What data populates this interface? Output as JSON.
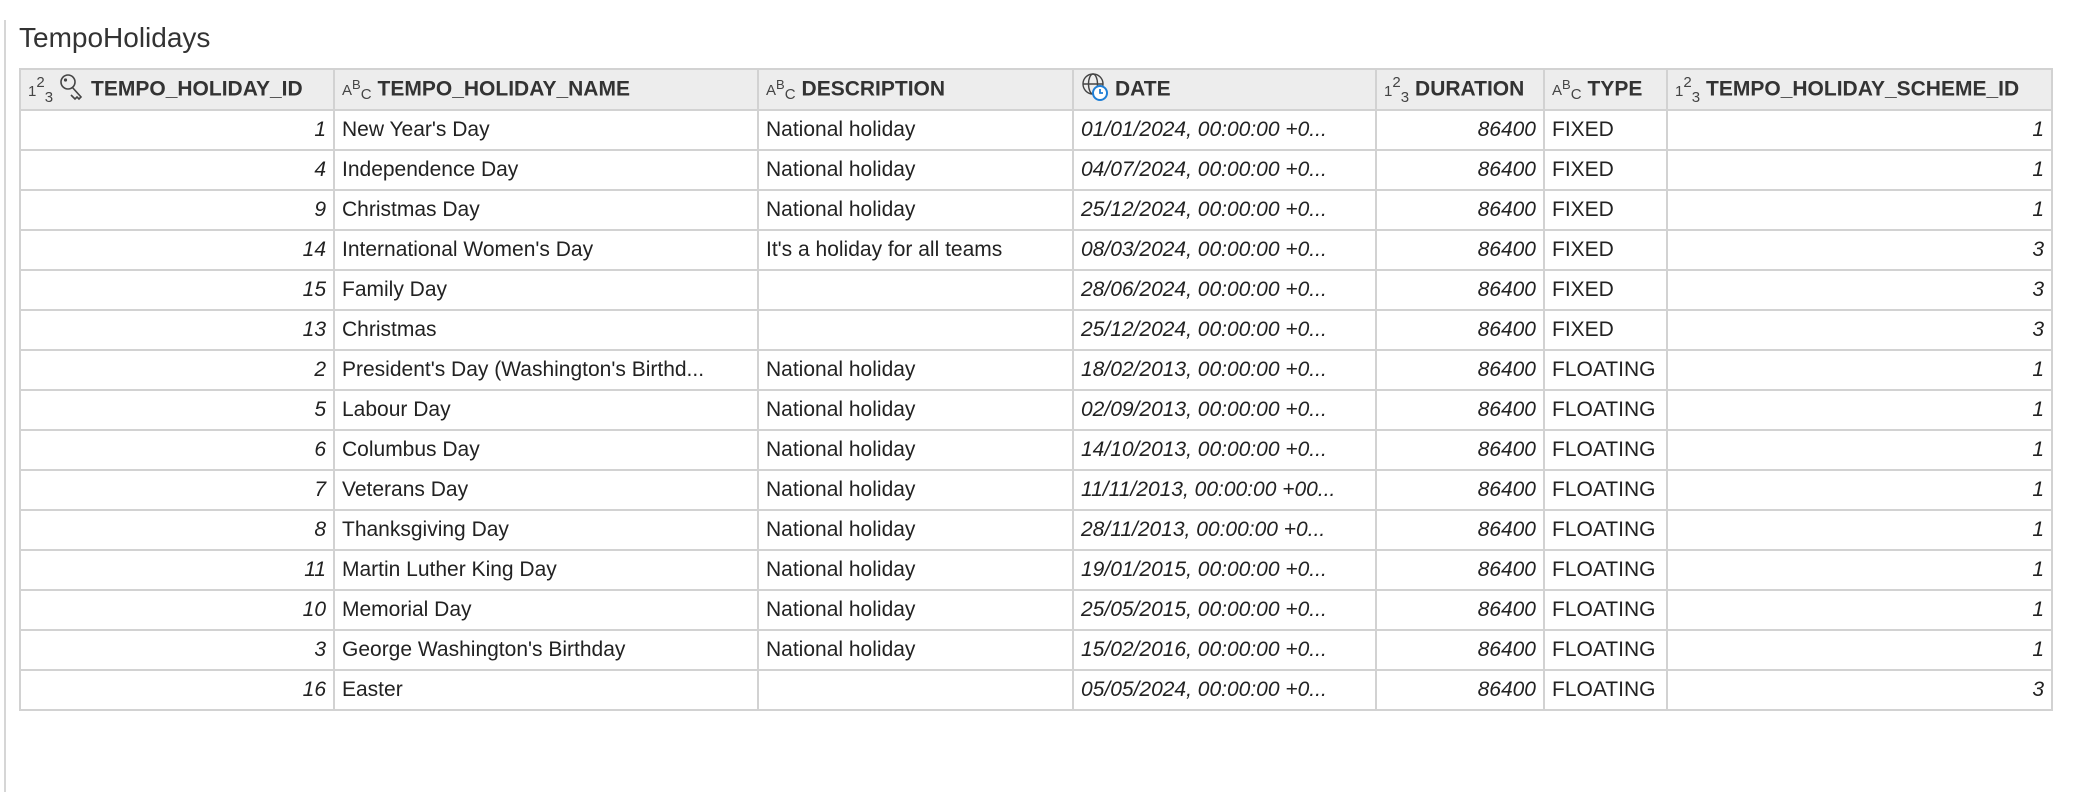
{
  "title": "TempoHolidays",
  "columns": [
    {
      "label": "TEMPO_HOLIDAY_ID",
      "type_icon": "number-type-icon",
      "key_icon": "primary-key-icon"
    },
    {
      "label": "TEMPO_HOLIDAY_NAME",
      "type_icon": "text-type-icon"
    },
    {
      "label": "DESCRIPTION",
      "type_icon": "text-type-icon"
    },
    {
      "label": "DATE",
      "type_icon": "datetime-timezone-icon"
    },
    {
      "label": "DURATION",
      "type_icon": "number-type-icon"
    },
    {
      "label": "TYPE",
      "type_icon": "text-type-icon"
    },
    {
      "label": "TEMPO_HOLIDAY_SCHEME_ID",
      "type_icon": "number-type-icon"
    }
  ],
  "rows": [
    [
      "1",
      "New Year's Day",
      "National holiday",
      "01/01/2024, 00:00:00 +0...",
      "86400",
      "FIXED",
      "1"
    ],
    [
      "4",
      "Independence Day",
      "National holiday",
      "04/07/2024, 00:00:00 +0...",
      "86400",
      "FIXED",
      "1"
    ],
    [
      "9",
      "Christmas Day",
      "National holiday",
      "25/12/2024, 00:00:00 +0...",
      "86400",
      "FIXED",
      "1"
    ],
    [
      "14",
      "International Women's Day",
      "It's a holiday for all teams",
      "08/03/2024, 00:00:00 +0...",
      "86400",
      "FIXED",
      "3"
    ],
    [
      "15",
      "Family Day",
      "",
      "28/06/2024, 00:00:00 +0...",
      "86400",
      "FIXED",
      "3"
    ],
    [
      "13",
      "Christmas",
      "",
      "25/12/2024, 00:00:00 +0...",
      "86400",
      "FIXED",
      "3"
    ],
    [
      "2",
      "President's Day (Washington's Birthd...",
      "National holiday",
      "18/02/2013, 00:00:00 +0...",
      "86400",
      "FLOATING",
      "1"
    ],
    [
      "5",
      "Labour Day",
      "National holiday",
      "02/09/2013, 00:00:00 +0...",
      "86400",
      "FLOATING",
      "1"
    ],
    [
      "6",
      "Columbus Day",
      "National holiday",
      "14/10/2013, 00:00:00 +0...",
      "86400",
      "FLOATING",
      "1"
    ],
    [
      "7",
      "Veterans Day",
      "National holiday",
      "11/11/2013, 00:00:00 +00...",
      "86400",
      "FLOATING",
      "1"
    ],
    [
      "8",
      "Thanksgiving Day",
      "National holiday",
      "28/11/2013, 00:00:00 +0...",
      "86400",
      "FLOATING",
      "1"
    ],
    [
      "11",
      "Martin Luther King Day",
      "National holiday",
      "19/01/2015, 00:00:00 +0...",
      "86400",
      "FLOATING",
      "1"
    ],
    [
      "10",
      "Memorial Day",
      "National holiday",
      "25/05/2015, 00:00:00 +0...",
      "86400",
      "FLOATING",
      "1"
    ],
    [
      "3",
      "George Washington's Birthday",
      "National holiday",
      "15/02/2016, 00:00:00 +0...",
      "86400",
      "FLOATING",
      "1"
    ],
    [
      "16",
      "Easter",
      "",
      "05/05/2024, 00:00:00 +0...",
      "86400",
      "FLOATING",
      "3"
    ]
  ]
}
